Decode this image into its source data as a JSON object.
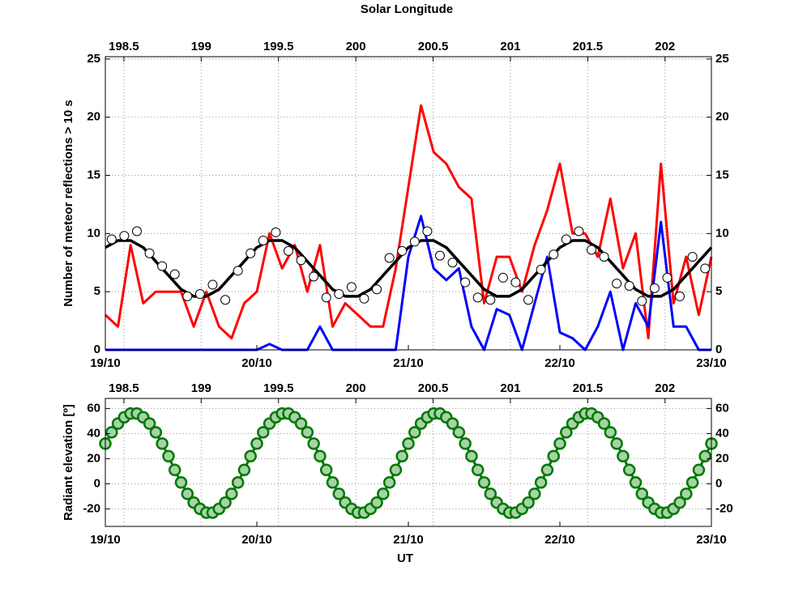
{
  "chart_data": [
    {
      "type": "line",
      "x2label": "Solar Longitude",
      "ylabel": "Number of meteor reflections > 10 s",
      "x": [
        0,
        2,
        4,
        6,
        8,
        10,
        12,
        14,
        16,
        18,
        20,
        22,
        24,
        26,
        28,
        30,
        32,
        34,
        36,
        38,
        40,
        42,
        44,
        46,
        48,
        50,
        52,
        54,
        56,
        58,
        60,
        62,
        64,
        66,
        68,
        70,
        72,
        74,
        76,
        78,
        80,
        82,
        84,
        86,
        88,
        90,
        92,
        94,
        96
      ],
      "xlim": [
        0,
        96
      ],
      "xticks": [
        {
          "value": 0,
          "label": "19/10"
        },
        {
          "value": 24,
          "label": "20/10"
        },
        {
          "value": 48,
          "label": "21/10"
        },
        {
          "value": 72,
          "label": "22/10"
        },
        {
          "value": 96,
          "label": "23/10"
        }
      ],
      "x2lim": [
        198.38,
        202.3
      ],
      "x2ticks": [
        198.5,
        199,
        199.5,
        200,
        200.5,
        201,
        201.5,
        202
      ],
      "ylim": [
        0,
        25.2
      ],
      "yticks": [
        0,
        5,
        10,
        15,
        20,
        25
      ],
      "grid": true,
      "series": [
        {
          "color": "#ff0000",
          "linewidth": 3,
          "values": [
            3,
            2,
            9,
            4,
            5,
            5,
            5,
            2,
            5,
            2,
            1,
            4,
            5,
            10,
            7,
            9,
            5,
            9,
            2,
            4,
            3,
            2,
            2,
            7,
            14,
            21,
            17,
            16,
            14,
            13,
            4,
            8,
            8,
            5,
            9,
            12,
            16,
            10,
            10,
            8,
            13,
            7,
            10,
            1,
            16,
            4,
            8,
            3,
            8
          ]
        },
        {
          "color": "#0000ff",
          "linewidth": 3,
          "values": [
            0,
            0,
            0,
            0,
            0,
            0,
            0,
            0,
            0,
            0,
            0,
            0,
            0,
            0.5,
            0,
            0,
            0,
            2,
            0,
            0,
            0,
            0,
            0,
            0,
            8,
            11.5,
            7,
            6,
            7,
            2,
            0,
            3.5,
            3,
            0,
            4,
            8,
            1.5,
            1,
            0,
            2,
            5,
            0,
            4,
            2,
            11,
            2,
            2,
            0,
            0
          ]
        },
        {
          "color": "#000000",
          "linewidth": 3.5,
          "values": [
            8.8,
            9.4,
            9.4,
            8.8,
            7.6,
            6.4,
            5.2,
            4.6,
            4.6,
            5.2,
            6.4,
            7.6,
            8.8,
            9.4,
            9.4,
            8.8,
            7.6,
            6.4,
            5.2,
            4.6,
            4.6,
            5.2,
            6.4,
            7.6,
            8.8,
            9.4,
            9.4,
            8.8,
            7.6,
            6.4,
            5.2,
            4.6,
            4.6,
            5.2,
            6.4,
            7.6,
            8.8,
            9.4,
            9.4,
            8.8,
            7.6,
            6.4,
            5.2,
            4.6,
            4.6,
            5.2,
            6.4,
            7.6,
            8.8
          ]
        },
        {
          "color": "#000000",
          "marker": "circle",
          "markerfacecolor": "#ffffff",
          "linestyle": "none",
          "x": [
            1,
            3,
            5,
            7,
            9,
            11,
            13,
            15,
            17,
            19,
            21,
            23,
            25,
            27,
            29,
            31,
            33,
            35,
            37,
            39,
            41,
            43,
            45,
            47,
            49,
            51,
            53,
            55,
            57,
            59,
            61,
            63,
            65,
            67,
            69,
            71,
            73,
            75,
            77,
            79,
            81,
            83,
            85,
            87,
            89,
            91,
            93,
            95
          ],
          "values": [
            9.5,
            9.8,
            10.2,
            8.3,
            7.2,
            6.5,
            4.6,
            4.8,
            5.6,
            4.3,
            6.8,
            8.3,
            9.4,
            10.1,
            8.5,
            7.7,
            6.3,
            4.5,
            4.8,
            5.4,
            4.4,
            5.2,
            7.9,
            8.5,
            9.3,
            10.2,
            8.1,
            7.5,
            5.8,
            4.5,
            4.3,
            6.2,
            5.8,
            4.3,
            6.9,
            8.2,
            9.5,
            10.2,
            8.6,
            8.0,
            5.7,
            5.5,
            4.2,
            5.3,
            6.2,
            4.6,
            8.0,
            7.0
          ]
        }
      ]
    },
    {
      "type": "line",
      "xlabel": "UT",
      "ylabel": "Radiant elevation [º]",
      "x": [
        0,
        1,
        2,
        3,
        4,
        5,
        6,
        7,
        8,
        9,
        10,
        11,
        12,
        13,
        14,
        15,
        16,
        17,
        18,
        19,
        20,
        21,
        22,
        23,
        24,
        25,
        26,
        27,
        28,
        29,
        30,
        31,
        32,
        33,
        34,
        35,
        36,
        37,
        38,
        39,
        40,
        41,
        42,
        43,
        44,
        45,
        46,
        47,
        48,
        49,
        50,
        51,
        52,
        53,
        54,
        55,
        56,
        57,
        58,
        59,
        60,
        61,
        62,
        63,
        64,
        65,
        66,
        67,
        68,
        69,
        70,
        71,
        72,
        73,
        74,
        75,
        76,
        77,
        78,
        79,
        80,
        81,
        82,
        83,
        84,
        85,
        86,
        87,
        88,
        89,
        90,
        91,
        92,
        93,
        94,
        95,
        96
      ],
      "xlim": [
        0,
        96
      ],
      "xticks": [
        {
          "value": 0,
          "label": "19/10"
        },
        {
          "value": 24,
          "label": "20/10"
        },
        {
          "value": 48,
          "label": "21/10"
        },
        {
          "value": 72,
          "label": "22/10"
        },
        {
          "value": 96,
          "label": "23/10"
        }
      ],
      "x2lim": [
        198.38,
        202.3
      ],
      "x2ticks": [
        198.5,
        199,
        199.5,
        200,
        200.5,
        201,
        201.5,
        202
      ],
      "ylim": [
        -34,
        68
      ],
      "yticks": [
        -20,
        0,
        20,
        40,
        60
      ],
      "grid": true,
      "series": [
        {
          "color": "#007700",
          "linewidth": 3,
          "marker": "circle",
          "markerfacecolor": "#a6d3a6",
          "linestyle": "solid",
          "values": [
            32,
            41,
            48,
            53,
            56,
            56,
            53,
            48,
            41,
            32,
            22,
            11,
            1,
            -8,
            -15,
            -20,
            -23,
            -23,
            -20,
            -15,
            -8,
            1,
            11,
            22,
            32,
            41,
            48,
            53,
            56,
            56,
            53,
            48,
            41,
            32,
            22,
            11,
            1,
            -8,
            -15,
            -20,
            -23,
            -23,
            -20,
            -15,
            -8,
            1,
            11,
            22,
            32,
            41,
            48,
            53,
            56,
            56,
            53,
            48,
            41,
            32,
            22,
            11,
            1,
            -8,
            -15,
            -20,
            -23,
            -23,
            -20,
            -15,
            -8,
            1,
            11,
            22,
            32,
            41,
            48,
            53,
            56,
            56,
            53,
            48,
            41,
            32,
            22,
            11,
            1,
            -8,
            -15,
            -20,
            -23,
            -23,
            -20,
            -15,
            -8,
            1,
            11,
            22,
            32
          ]
        }
      ]
    }
  ]
}
